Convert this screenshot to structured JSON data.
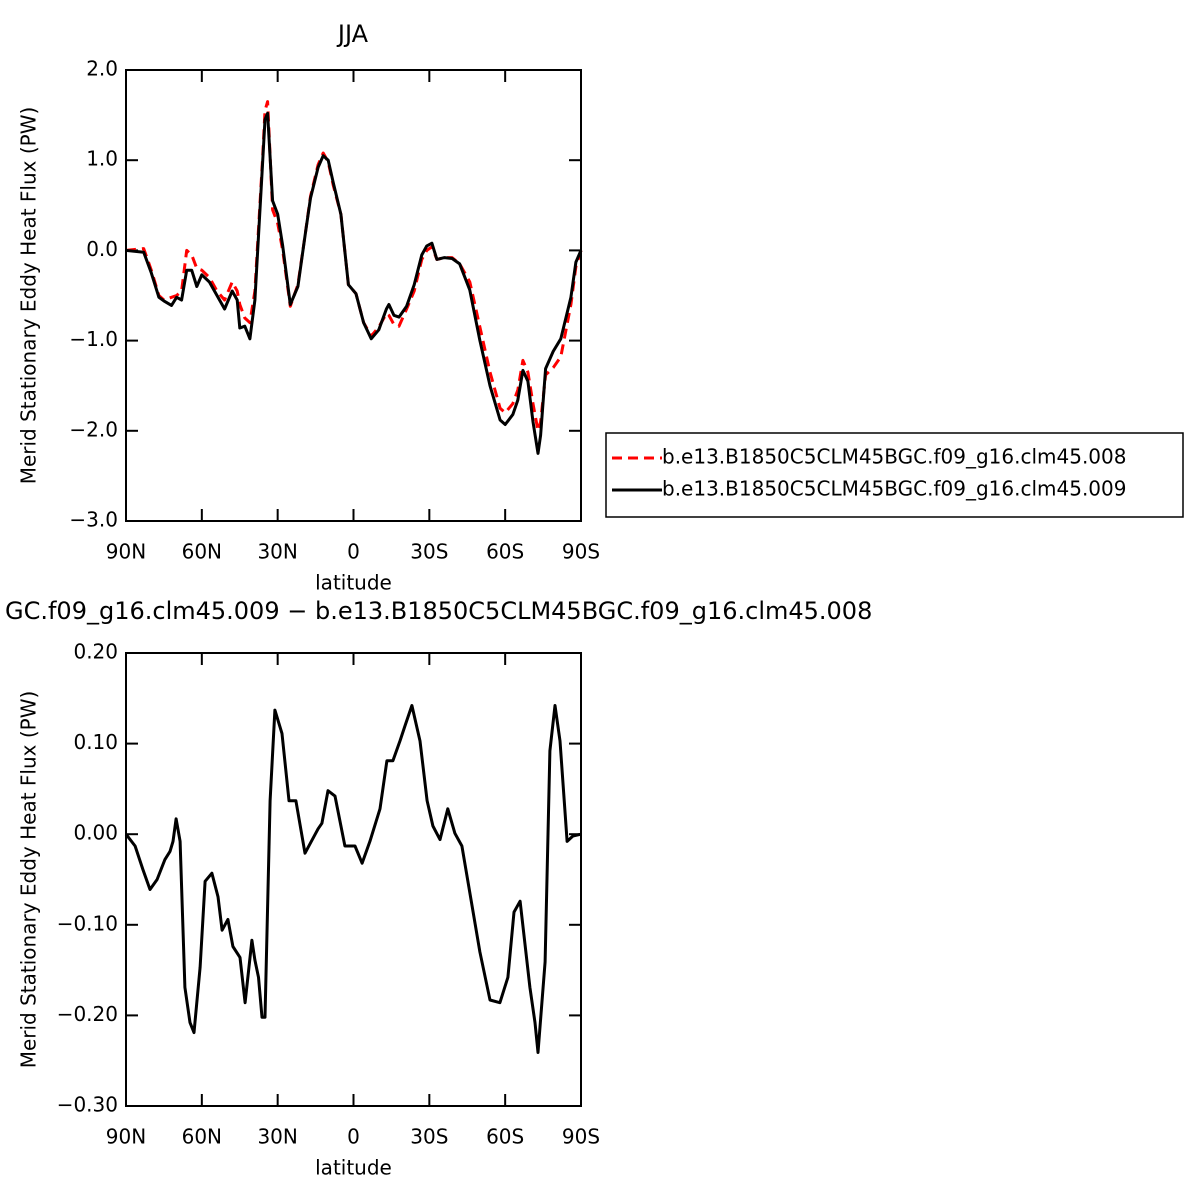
{
  "chart_data": [
    {
      "type": "line",
      "title": "JJA",
      "xlabel": "latitude",
      "ylabel": "Merid Stationary Eddy Heat Flux (PW)",
      "xlim": [
        90,
        -90
      ],
      "xticks": [
        {
          "value": 90,
          "label": "90N"
        },
        {
          "value": 60,
          "label": "60N"
        },
        {
          "value": 30,
          "label": "30N"
        },
        0,
        {
          "value": -30,
          "label": "30S"
        },
        {
          "value": -60,
          "label": "60S"
        },
        {
          "value": -90,
          "label": "90S"
        }
      ],
      "ylim": [
        -3,
        2
      ],
      "yticks": [
        {
          "value": 2,
          "label": "2.0"
        },
        {
          "value": 1,
          "label": "1.0"
        },
        {
          "value": 0,
          "label": "0.0"
        },
        {
          "value": -1,
          "label": "−1.0"
        },
        {
          "value": -2,
          "label": "−2.0"
        },
        {
          "value": -3,
          "label": "−3.0"
        }
      ],
      "legend_position": "right",
      "x": [
        90,
        83,
        80,
        77,
        75,
        72,
        70,
        68,
        66,
        64,
        62,
        60,
        57,
        54,
        51,
        48,
        46,
        45,
        43,
        41,
        39,
        36,
        35,
        34,
        32,
        30,
        28,
        25,
        22,
        19,
        17,
        14,
        12,
        10,
        8,
        5,
        2,
        -1,
        -4,
        -7,
        -10,
        -13,
        -14,
        -16,
        -18,
        -21,
        -24,
        -27,
        -29,
        -31,
        -33,
        -36,
        -39,
        -42,
        -46,
        -50,
        -54,
        -58,
        -60,
        -63,
        -65,
        -67,
        -69,
        -71,
        -73,
        -74,
        -76,
        -79,
        -82,
        -86,
        -88,
        -90
      ],
      "series": [
        {
          "name": "b.e13.B1850C5CLM45BGC.f09_g16.clm45.008",
          "color": "#ff0000",
          "dash": true,
          "values": [
            0,
            0.02,
            -0.22,
            -0.5,
            -0.55,
            -0.52,
            -0.5,
            -0.45,
            0,
            -0.05,
            -0.2,
            -0.22,
            -0.3,
            -0.45,
            -0.55,
            -0.35,
            -0.45,
            -0.6,
            -0.75,
            -0.8,
            -0.45,
            1.0,
            1.55,
            1.65,
            0.45,
            0.3,
            0,
            -0.62,
            -0.38,
            0.2,
            0.6,
            0.95,
            1.08,
            0.98,
            0.72,
            0.4,
            -0.38,
            -0.48,
            -0.8,
            -0.95,
            -0.85,
            -0.7,
            -0.72,
            -0.82,
            -0.84,
            -0.65,
            -0.45,
            -0.1,
            0,
            0.04,
            -0.1,
            -0.08,
            -0.08,
            -0.15,
            -0.35,
            -0.85,
            -1.35,
            -1.75,
            -1.8,
            -1.7,
            -1.55,
            -1.22,
            -1.35,
            -1.7,
            -2.0,
            -1.9,
            -1.38,
            -1.3,
            -1.18,
            -0.6,
            -0.18,
            0
          ]
        },
        {
          "name": "b.e13.B1850C5CLM45BGC.f09_g16.clm45.009",
          "color": "#000000",
          "dash": false,
          "values": [
            0,
            -0.02,
            -0.25,
            -0.52,
            -0.56,
            -0.61,
            -0.52,
            -0.55,
            -0.22,
            -0.22,
            -0.4,
            -0.27,
            -0.35,
            -0.5,
            -0.65,
            -0.45,
            -0.55,
            -0.86,
            -0.84,
            -0.98,
            -0.55,
            0.95,
            1.45,
            1.52,
            0.55,
            0.4,
            0.05,
            -0.6,
            -0.4,
            0.2,
            0.58,
            0.92,
            1.05,
            1.0,
            0.75,
            0.4,
            -0.38,
            -0.48,
            -0.8,
            -0.98,
            -0.88,
            -0.65,
            -0.6,
            -0.72,
            -0.74,
            -0.62,
            -0.38,
            -0.05,
            0.05,
            0.08,
            -0.1,
            -0.08,
            -0.09,
            -0.15,
            -0.44,
            -1.0,
            -1.5,
            -1.88,
            -1.93,
            -1.82,
            -1.66,
            -1.33,
            -1.45,
            -1.9,
            -2.25,
            -2.05,
            -1.31,
            -1.12,
            -0.98,
            -0.52,
            -0.13,
            0
          ]
        }
      ]
    },
    {
      "type": "line",
      "title": "GC.f09_g16.clm45.009 − b.e13.B1850C5CLM45BGC.f09_g16.clm45.008",
      "xlabel": "latitude",
      "ylabel": "Merid Stationary Eddy Heat Flux (PW)",
      "xlim": [
        90,
        -90
      ],
      "xticks": [
        {
          "value": 90,
          "label": "90N"
        },
        {
          "value": 60,
          "label": "60N"
        },
        {
          "value": 30,
          "label": "30N"
        },
        0,
        {
          "value": -30,
          "label": "30S"
        },
        {
          "value": -60,
          "label": "60S"
        },
        {
          "value": -90,
          "label": "90S"
        }
      ],
      "ylim": [
        -0.3,
        0.2
      ],
      "yticks": [
        {
          "value": 0.2,
          "label": "0.20"
        },
        {
          "value": 0.1,
          "label": "0.10"
        },
        {
          "value": 0,
          "label": "0.00"
        },
        {
          "value": -0.1,
          "label": "−0.10"
        },
        {
          "value": -0.2,
          "label": "−0.20"
        },
        {
          "value": -0.3,
          "label": "−0.30"
        }
      ],
      "x": [
        90,
        86.4,
        83.3,
        80.5,
        77.7,
        74.6,
        72.6,
        71.4,
        70.2,
        68.6,
        66.7,
        64.7,
        63.1,
        60.7,
        58.7,
        56,
        53.6,
        52,
        49.7,
        47.7,
        44.9,
        42.9,
        40.2,
        39,
        37.6,
        36.2,
        35,
        33,
        31.1,
        28.3,
        25.5,
        22.8,
        19.2,
        14,
        12.5,
        10.1,
        7.3,
        3.4,
        -0.6,
        -3.4,
        -6.5,
        -10.5,
        -13.2,
        -15.6,
        -18.4,
        -20.4,
        -23.1,
        -26.3,
        -29.1,
        -31.4,
        -34.2,
        -37.3,
        -40.1,
        -42.9,
        -50,
        -54,
        -57.9,
        -61.1,
        -63.5,
        -65.9,
        -69.8,
        -71.8,
        -73,
        -75.8,
        -77.7,
        -79.7,
        -81.7,
        -84.5,
        -86.8,
        -90
      ],
      "series": [
        {
          "color": "#000000",
          "dash": false,
          "values": [
            0,
            -0.013,
            -0.039,
            -0.061,
            -0.05,
            -0.028,
            -0.019,
            -0.008,
            0.017,
            -0.008,
            -0.169,
            -0.208,
            -0.219,
            -0.147,
            -0.052,
            -0.043,
            -0.069,
            -0.106,
            -0.094,
            -0.124,
            -0.136,
            -0.186,
            -0.117,
            -0.139,
            -0.158,
            -0.202,
            -0.202,
            0.037,
            0.137,
            0.111,
            0.037,
            0.037,
            -0.021,
            0.006,
            0.012,
            0.048,
            0.042,
            -0.013,
            -0.013,
            -0.032,
            -0.008,
            0.028,
            0.081,
            0.081,
            0.103,
            0.12,
            0.142,
            0.103,
            0.037,
            0.009,
            -0.006,
            0.028,
            0.001,
            -0.013,
            -0.13,
            -0.183,
            -0.186,
            -0.158,
            -0.086,
            -0.074,
            -0.169,
            -0.208,
            -0.241,
            -0.141,
            0.092,
            0.142,
            0.103,
            -0.008,
            -0.002,
            0
          ]
        }
      ]
    }
  ]
}
